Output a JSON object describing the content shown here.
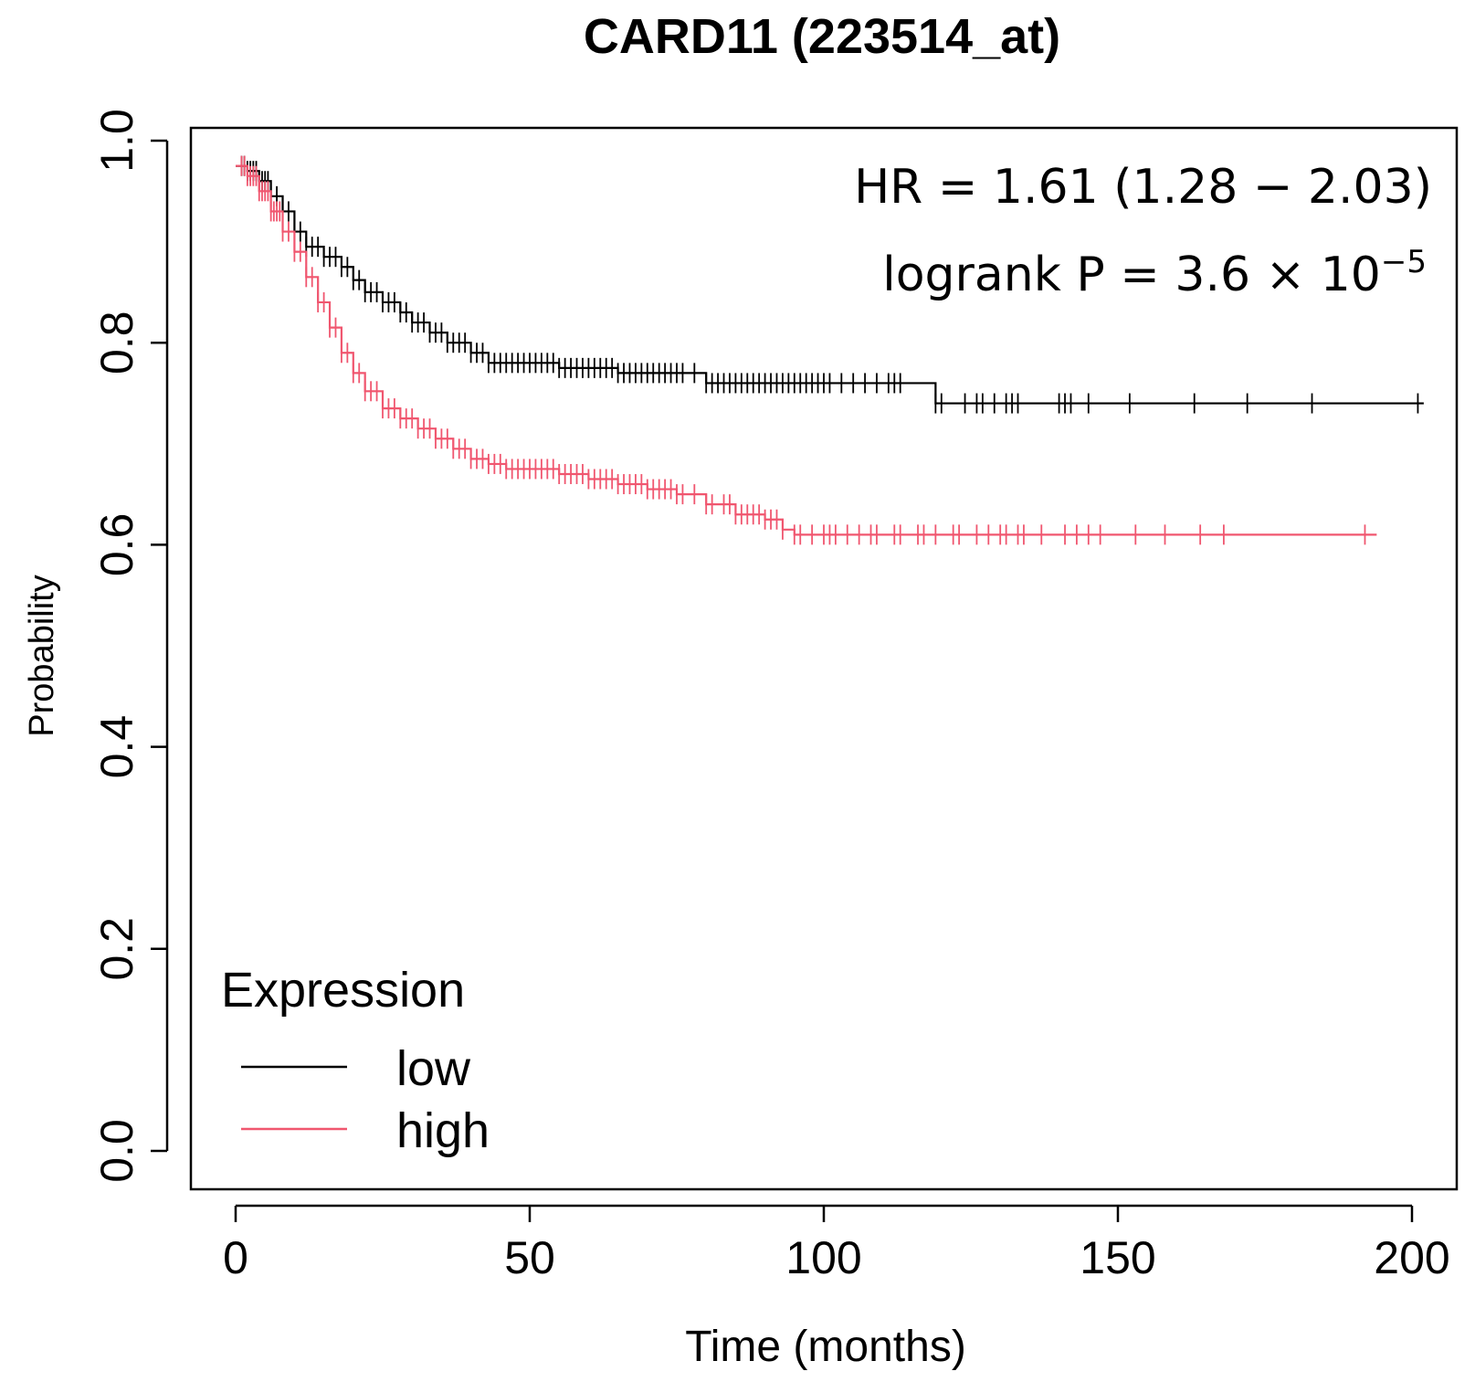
{
  "chart_data": {
    "type": "line",
    "subtype": "kaplan-meier",
    "title": "CARD11 (223514_at)",
    "xlabel": "Time (months)",
    "ylabel": "Probability",
    "xlim": [
      0,
      200
    ],
    "ylim": [
      0,
      1
    ],
    "x_ticks": [
      0,
      50,
      100,
      150,
      200
    ],
    "y_ticks": [
      0.0,
      0.2,
      0.4,
      0.6,
      0.8,
      1.0
    ],
    "x_tick_labels": [
      "0",
      "50",
      "100",
      "150",
      "200"
    ],
    "y_tick_labels": [
      "0.0",
      "0.2",
      "0.4",
      "0.6",
      "0.8",
      "1.0"
    ],
    "grid": false,
    "legend": {
      "title": "Expression",
      "position": "bottom-left"
    },
    "annotations": {
      "hr": "HR = 1.61 (1.28 − 2.03)",
      "logrank_prefix": "logrank  P = 3.6 × 10",
      "logrank_exponent": "−5"
    },
    "series": [
      {
        "name": "low",
        "color": "#000000",
        "x": [
          0,
          2,
          4,
          6,
          8,
          10,
          12,
          15,
          18,
          20,
          22,
          25,
          28,
          30,
          33,
          36,
          40,
          43,
          45,
          50,
          55,
          60,
          65,
          70,
          75,
          80,
          90,
          100,
          110,
          117,
          119,
          125,
          150,
          202
        ],
        "y": [
          0.975,
          0.97,
          0.96,
          0.945,
          0.93,
          0.91,
          0.895,
          0.885,
          0.875,
          0.862,
          0.85,
          0.84,
          0.83,
          0.82,
          0.81,
          0.8,
          0.79,
          0.78,
          0.78,
          0.78,
          0.775,
          0.775,
          0.77,
          0.77,
          0.77,
          0.76,
          0.76,
          0.76,
          0.76,
          0.76,
          0.74,
          0.74,
          0.74,
          0.74
        ],
        "censor_x": [
          1,
          1.5,
          2,
          2.5,
          3,
          3.5,
          4,
          4.5,
          5,
          5.5,
          6,
          7,
          8,
          9,
          10,
          11,
          12,
          13,
          14,
          15,
          16,
          17,
          18,
          19,
          20,
          21,
          22,
          23,
          24,
          25,
          26,
          27,
          28,
          29,
          30,
          31,
          32,
          33,
          34,
          35,
          36,
          37,
          38,
          39,
          40,
          41,
          42,
          43,
          44,
          45,
          46,
          47,
          48,
          49,
          50,
          51,
          52,
          53,
          54,
          55,
          56,
          57,
          58,
          59,
          60,
          61,
          62,
          63,
          64,
          65,
          66,
          67,
          68,
          69,
          70,
          71,
          72,
          73,
          74,
          75,
          76,
          78,
          80,
          81,
          82,
          83,
          84,
          85,
          86,
          87,
          88,
          89,
          90,
          91,
          92,
          93,
          94,
          95,
          96,
          97,
          98,
          99,
          100,
          101,
          103,
          105,
          107,
          109,
          111,
          112,
          113,
          119,
          120,
          124,
          126,
          127,
          129,
          131,
          132,
          133,
          140,
          141,
          142,
          145,
          152,
          163,
          172,
          183,
          201
        ]
      },
      {
        "name": "high",
        "color": "#f0566f",
        "x": [
          0,
          2,
          4,
          6,
          8,
          10,
          12,
          14,
          16,
          18,
          20,
          22,
          25,
          28,
          31,
          34,
          37,
          40,
          43,
          46,
          50,
          55,
          60,
          65,
          70,
          75,
          80,
          85,
          90,
          93,
          95,
          100,
          150,
          194
        ],
        "y": [
          0.975,
          0.965,
          0.95,
          0.93,
          0.91,
          0.89,
          0.865,
          0.84,
          0.815,
          0.79,
          0.77,
          0.752,
          0.735,
          0.725,
          0.715,
          0.705,
          0.695,
          0.685,
          0.68,
          0.675,
          0.675,
          0.67,
          0.665,
          0.66,
          0.655,
          0.65,
          0.64,
          0.63,
          0.625,
          0.615,
          0.61,
          0.61,
          0.61,
          0.61
        ],
        "censor_x": [
          1,
          1.5,
          2,
          2.5,
          3,
          3.5,
          4,
          4.5,
          5,
          5.5,
          6,
          6.5,
          7,
          7.5,
          8,
          9,
          10,
          11,
          12,
          13,
          14,
          15,
          16,
          17,
          18,
          19,
          20,
          21,
          22,
          23,
          24,
          25,
          26,
          27,
          28,
          29,
          30,
          31,
          32,
          33,
          34,
          35,
          36,
          37,
          38,
          39,
          40,
          41,
          42,
          43,
          44,
          45,
          46,
          47,
          48,
          49,
          50,
          51,
          52,
          53,
          54,
          55,
          56,
          57,
          58,
          59,
          60,
          61,
          62,
          63,
          64,
          65,
          66,
          67,
          68,
          69,
          70,
          71,
          72,
          73,
          74,
          75,
          76,
          78,
          80,
          81,
          83,
          84,
          85,
          86,
          87,
          88,
          89,
          90,
          91,
          92,
          93,
          95,
          96,
          98,
          100,
          101,
          102,
          104,
          106,
          108,
          109,
          112,
          113,
          116,
          117,
          119,
          122,
          123,
          126,
          128,
          130,
          131,
          133,
          134,
          137,
          141,
          143,
          145,
          147,
          153,
          158,
          164,
          168,
          192
        ]
      }
    ]
  }
}
